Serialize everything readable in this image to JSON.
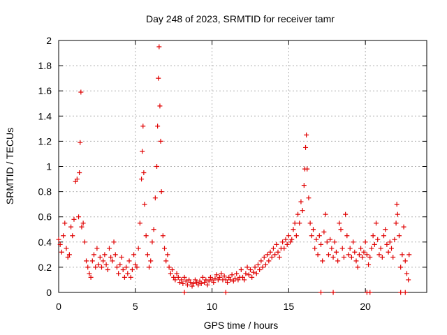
{
  "chart_data": {
    "type": "scatter",
    "title": "Day 248 of 2023, SRMTID for receiver tamr",
    "xlabel": "GPS time / hours",
    "ylabel": "SRMTID / TECUs",
    "xlim": [
      0,
      24
    ],
    "ylim": [
      0,
      2
    ],
    "x_ticks": [
      0,
      5,
      10,
      15,
      20
    ],
    "x_tick_labels": [
      "0",
      "5",
      "10",
      "15",
      "20"
    ],
    "y_ticks": [
      0,
      0.2,
      0.4,
      0.6,
      0.8,
      1,
      1.2,
      1.4,
      1.6,
      1.8,
      2
    ],
    "y_tick_labels": [
      "0",
      "0.2",
      "0.4",
      "0.6",
      "0.8",
      "1",
      "1.2",
      "1.4",
      "1.6",
      "1.8",
      "2"
    ],
    "grid": true,
    "marker": "+",
    "color": "#e00000",
    "series": [
      {
        "name": "SRMTID",
        "points": [
          [
            0.0,
            0.42
          ],
          [
            0.1,
            0.38
          ],
          [
            0.2,
            0.32
          ],
          [
            0.3,
            0.45
          ],
          [
            0.4,
            0.55
          ],
          [
            0.5,
            0.35
          ],
          [
            0.6,
            0.28
          ],
          [
            0.7,
            0.3
          ],
          [
            0.8,
            0.52
          ],
          [
            0.9,
            0.45
          ],
          [
            1.0,
            0.58
          ],
          [
            1.1,
            0.88
          ],
          [
            1.2,
            0.9
          ],
          [
            1.3,
            0.6
          ],
          [
            1.35,
            0.95
          ],
          [
            1.4,
            1.19
          ],
          [
            1.45,
            1.59
          ],
          [
            1.5,
            0.52
          ],
          [
            1.6,
            0.55
          ],
          [
            1.7,
            0.4
          ],
          [
            1.8,
            0.25
          ],
          [
            1.9,
            0.2
          ],
          [
            2.0,
            0.15
          ],
          [
            2.1,
            0.12
          ],
          [
            2.2,
            0.25
          ],
          [
            2.3,
            0.3
          ],
          [
            2.4,
            0.2
          ],
          [
            2.5,
            0.35
          ],
          [
            2.6,
            0.22
          ],
          [
            2.7,
            0.28
          ],
          [
            2.8,
            0.2
          ],
          [
            2.9,
            0.25
          ],
          [
            3.0,
            0.3
          ],
          [
            3.1,
            0.22
          ],
          [
            3.2,
            0.18
          ],
          [
            3.3,
            0.35
          ],
          [
            3.4,
            0.28
          ],
          [
            3.5,
            0.25
          ],
          [
            3.6,
            0.4
          ],
          [
            3.7,
            0.3
          ],
          [
            3.8,
            0.2
          ],
          [
            3.9,
            0.15
          ],
          [
            4.0,
            0.22
          ],
          [
            4.1,
            0.28
          ],
          [
            4.2,
            0.18
          ],
          [
            4.3,
            0.12
          ],
          [
            4.4,
            0.2
          ],
          [
            4.5,
            0.15
          ],
          [
            4.6,
            0.25
          ],
          [
            4.7,
            0.12
          ],
          [
            4.8,
            0.18
          ],
          [
            4.9,
            0.3
          ],
          [
            5.0,
            0.22
          ],
          [
            5.1,
            0.2
          ],
          [
            5.2,
            0.35
          ],
          [
            5.3,
            0.55
          ],
          [
            5.4,
            0.9
          ],
          [
            5.45,
            1.12
          ],
          [
            5.5,
            1.32
          ],
          [
            5.55,
            0.95
          ],
          [
            5.6,
            0.7
          ],
          [
            5.7,
            0.45
          ],
          [
            5.8,
            0.3
          ],
          [
            5.9,
            0.2
          ],
          [
            6.0,
            0.25
          ],
          [
            6.1,
            0.4
          ],
          [
            6.2,
            0.5
          ],
          [
            6.3,
            0.75
          ],
          [
            6.4,
            1.0
          ],
          [
            6.45,
            1.32
          ],
          [
            6.5,
            1.7
          ],
          [
            6.55,
            1.95
          ],
          [
            6.6,
            1.48
          ],
          [
            6.65,
            1.2
          ],
          [
            6.7,
            0.8
          ],
          [
            6.8,
            0.45
          ],
          [
            6.9,
            0.35
          ],
          [
            7.0,
            0.25
          ],
          [
            7.1,
            0.3
          ],
          [
            7.2,
            0.2
          ],
          [
            7.3,
            0.15
          ],
          [
            7.4,
            0.18
          ],
          [
            7.5,
            0.12
          ],
          [
            7.6,
            0.1
          ],
          [
            7.7,
            0.15
          ],
          [
            7.8,
            0.12
          ],
          [
            7.9,
            0.08
          ],
          [
            8.0,
            0.1
          ],
          [
            8.1,
            0.07
          ],
          [
            8.2,
            0.12
          ],
          [
            8.3,
            0.09
          ],
          [
            8.4,
            0.06
          ],
          [
            8.5,
            0.1
          ],
          [
            8.6,
            0.08
          ],
          [
            8.7,
            0.05
          ],
          [
            8.8,
            0.07
          ],
          [
            8.9,
            0.1
          ],
          [
            9.0,
            0.08
          ],
          [
            9.1,
            0.06
          ],
          [
            9.2,
            0.09
          ],
          [
            9.3,
            0.07
          ],
          [
            9.4,
            0.12
          ],
          [
            9.5,
            0.08
          ],
          [
            9.6,
            0.1
          ],
          [
            9.7,
            0.06
          ],
          [
            9.8,
            0.09
          ],
          [
            9.9,
            0.12
          ],
          [
            10.0,
            0.1
          ],
          [
            10.1,
            0.08
          ],
          [
            10.2,
            0.11
          ],
          [
            10.3,
            0.14
          ],
          [
            10.4,
            0.1
          ],
          [
            10.5,
            0.12
          ],
          [
            10.6,
            0.15
          ],
          [
            10.7,
            0.1
          ],
          [
            10.8,
            0.13
          ],
          [
            10.9,
            0.1
          ],
          [
            11.0,
            0.08
          ],
          [
            11.1,
            0.12
          ],
          [
            11.2,
            0.1
          ],
          [
            11.3,
            0.14
          ],
          [
            11.4,
            0.09
          ],
          [
            11.5,
            0.11
          ],
          [
            11.6,
            0.15
          ],
          [
            11.7,
            0.1
          ],
          [
            11.8,
            0.12
          ],
          [
            11.9,
            0.18
          ],
          [
            12.0,
            0.12
          ],
          [
            12.1,
            0.1
          ],
          [
            12.2,
            0.15
          ],
          [
            12.3,
            0.2
          ],
          [
            12.4,
            0.14
          ],
          [
            12.5,
            0.18
          ],
          [
            12.6,
            0.12
          ],
          [
            12.7,
            0.16
          ],
          [
            12.8,
            0.2
          ],
          [
            12.9,
            0.15
          ],
          [
            13.0,
            0.22
          ],
          [
            13.1,
            0.18
          ],
          [
            13.2,
            0.25
          ],
          [
            13.3,
            0.2
          ],
          [
            13.4,
            0.28
          ],
          [
            13.5,
            0.22
          ],
          [
            13.6,
            0.3
          ],
          [
            13.7,
            0.25
          ],
          [
            13.8,
            0.32
          ],
          [
            13.9,
            0.28
          ],
          [
            14.0,
            0.35
          ],
          [
            14.1,
            0.3
          ],
          [
            14.2,
            0.38
          ],
          [
            14.3,
            0.32
          ],
          [
            14.4,
            0.28
          ],
          [
            14.5,
            0.35
          ],
          [
            14.6,
            0.4
          ],
          [
            14.7,
            0.35
          ],
          [
            14.8,
            0.42
          ],
          [
            14.9,
            0.38
          ],
          [
            15.0,
            0.45
          ],
          [
            15.1,
            0.4
          ],
          [
            15.2,
            0.42
          ],
          [
            15.3,
            0.5
          ],
          [
            15.4,
            0.55
          ],
          [
            15.5,
            0.45
          ],
          [
            15.6,
            0.62
          ],
          [
            15.7,
            0.55
          ],
          [
            15.8,
            0.72
          ],
          [
            15.9,
            0.65
          ],
          [
            16.0,
            0.85
          ],
          [
            16.05,
            0.98
          ],
          [
            16.1,
            1.15
          ],
          [
            16.15,
            1.25
          ],
          [
            16.2,
            0.98
          ],
          [
            16.3,
            0.75
          ],
          [
            16.4,
            0.55
          ],
          [
            16.5,
            0.45
          ],
          [
            16.6,
            0.5
          ],
          [
            16.7,
            0.35
          ],
          [
            16.8,
            0.42
          ],
          [
            16.9,
            0.3
          ],
          [
            17.0,
            0.45
          ],
          [
            17.1,
            0.38
          ],
          [
            17.2,
            0.25
          ],
          [
            17.3,
            0.48
          ],
          [
            17.4,
            0.62
          ],
          [
            17.5,
            0.4
          ],
          [
            17.6,
            0.3
          ],
          [
            17.7,
            0.42
          ],
          [
            17.8,
            0.35
          ],
          [
            17.9,
            0.28
          ],
          [
            18.0,
            0.4
          ],
          [
            18.1,
            0.32
          ],
          [
            18.2,
            0.25
          ],
          [
            18.3,
            0.55
          ],
          [
            18.4,
            0.5
          ],
          [
            18.5,
            0.35
          ],
          [
            18.6,
            0.28
          ],
          [
            18.7,
            0.62
          ],
          [
            18.8,
            0.45
          ],
          [
            18.9,
            0.3
          ],
          [
            19.0,
            0.35
          ],
          [
            19.1,
            0.28
          ],
          [
            19.2,
            0.4
          ],
          [
            19.3,
            0.32
          ],
          [
            19.4,
            0.25
          ],
          [
            19.5,
            0.2
          ],
          [
            19.6,
            0.3
          ],
          [
            19.7,
            0.35
          ],
          [
            19.8,
            0.28
          ],
          [
            19.9,
            0.32
          ],
          [
            20.0,
            0.4
          ],
          [
            20.1,
            0.3
          ],
          [
            20.2,
            0.22
          ],
          [
            20.3,
            0.28
          ],
          [
            20.4,
            0.35
          ],
          [
            20.5,
            0.45
          ],
          [
            20.6,
            0.38
          ],
          [
            20.7,
            0.55
          ],
          [
            20.8,
            0.42
          ],
          [
            20.9,
            0.3
          ],
          [
            21.0,
            0.35
          ],
          [
            21.1,
            0.28
          ],
          [
            21.2,
            0.45
          ],
          [
            21.3,
            0.5
          ],
          [
            21.4,
            0.38
          ],
          [
            21.5,
            0.32
          ],
          [
            21.6,
            0.4
          ],
          [
            21.7,
            0.35
          ],
          [
            21.8,
            0.28
          ],
          [
            21.9,
            0.42
          ],
          [
            22.0,
            0.55
          ],
          [
            22.05,
            0.7
          ],
          [
            22.1,
            0.62
          ],
          [
            22.2,
            0.45
          ],
          [
            22.3,
            0.2
          ],
          [
            22.4,
            0.3
          ],
          [
            22.5,
            0.52
          ],
          [
            22.6,
            0.25
          ],
          [
            22.7,
            0.15
          ],
          [
            22.8,
            0.1
          ],
          [
            22.85,
            0.3
          ],
          [
            8.2,
            0.0
          ],
          [
            10.9,
            0.0
          ],
          [
            17.1,
            0.0
          ],
          [
            17.9,
            0.0
          ],
          [
            20.1,
            0.0
          ],
          [
            20.3,
            0.0
          ],
          [
            22.3,
            0.0
          ],
          [
            22.6,
            0.0
          ]
        ]
      }
    ]
  }
}
